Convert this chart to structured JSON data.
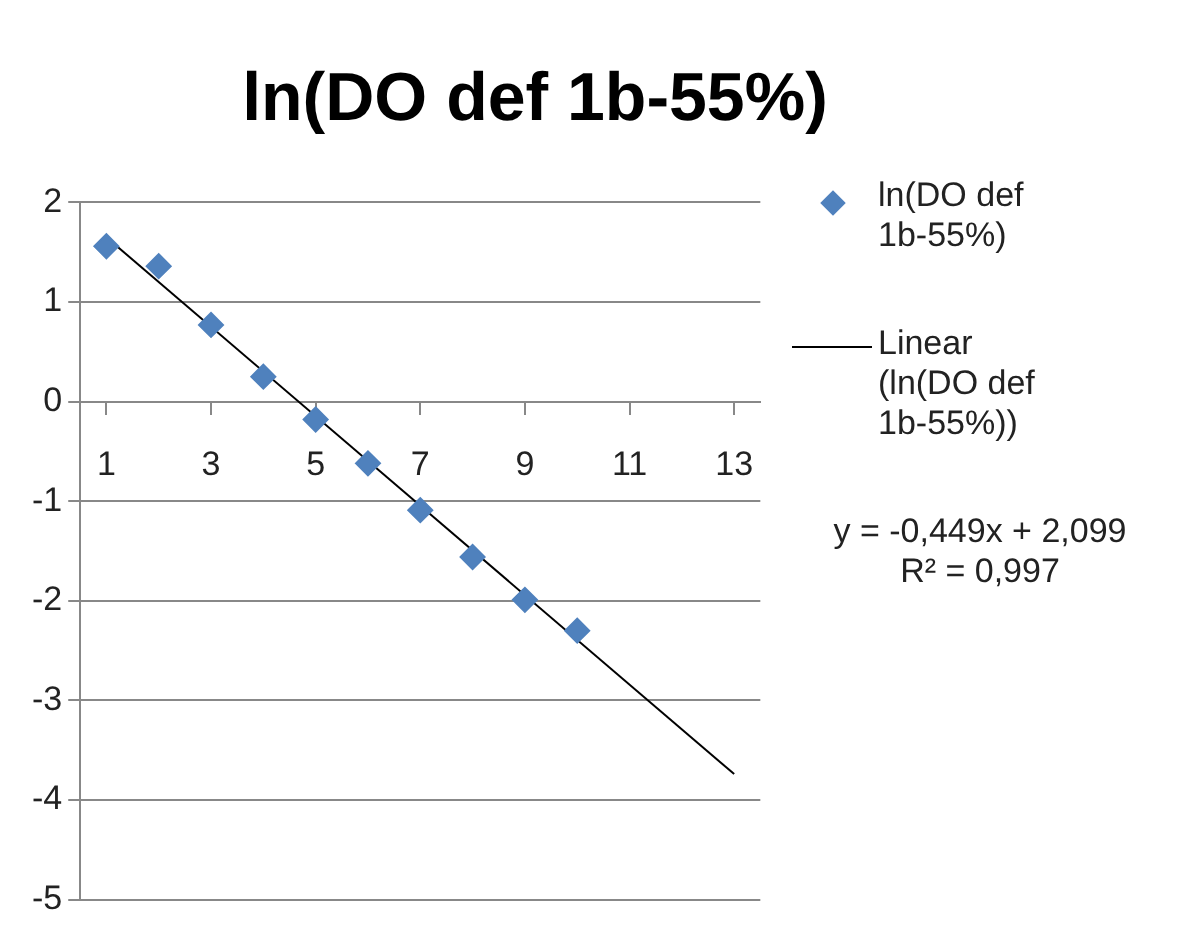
{
  "chart_data": {
    "type": "line",
    "title": "ln(DO def 1b-55%)",
    "series": [
      {
        "name": "ln(DO def 1b-55%)",
        "type": "scatter",
        "color": "#4f81bd",
        "marker": "diamond",
        "x": [
          1,
          2,
          3,
          4,
          5,
          6,
          7,
          8,
          9,
          10
        ],
        "values": [
          1.56,
          1.36,
          0.77,
          0.25,
          -0.18,
          -0.62,
          -1.09,
          -1.56,
          -1.99,
          -2.3
        ]
      },
      {
        "name": "Linear (ln(DO def 1b-55%))",
        "type": "line",
        "color": "#000000",
        "marker": "none",
        "line_style": "solid",
        "x": [
          1,
          13
        ],
        "values": [
          1.65,
          -3.74
        ]
      }
    ],
    "xlim": [
      0.5,
      13.5
    ],
    "xticks": [
      1,
      3,
      5,
      7,
      9,
      11,
      13
    ],
    "ylim": [
      -5,
      2
    ],
    "yticks": [
      -5,
      -4,
      -3,
      -2,
      -1,
      0,
      1,
      2
    ],
    "grid": "y",
    "legend": "right",
    "annotations": [
      "y = -0,449x + 2,099",
      "R² = 0,997"
    ]
  }
}
